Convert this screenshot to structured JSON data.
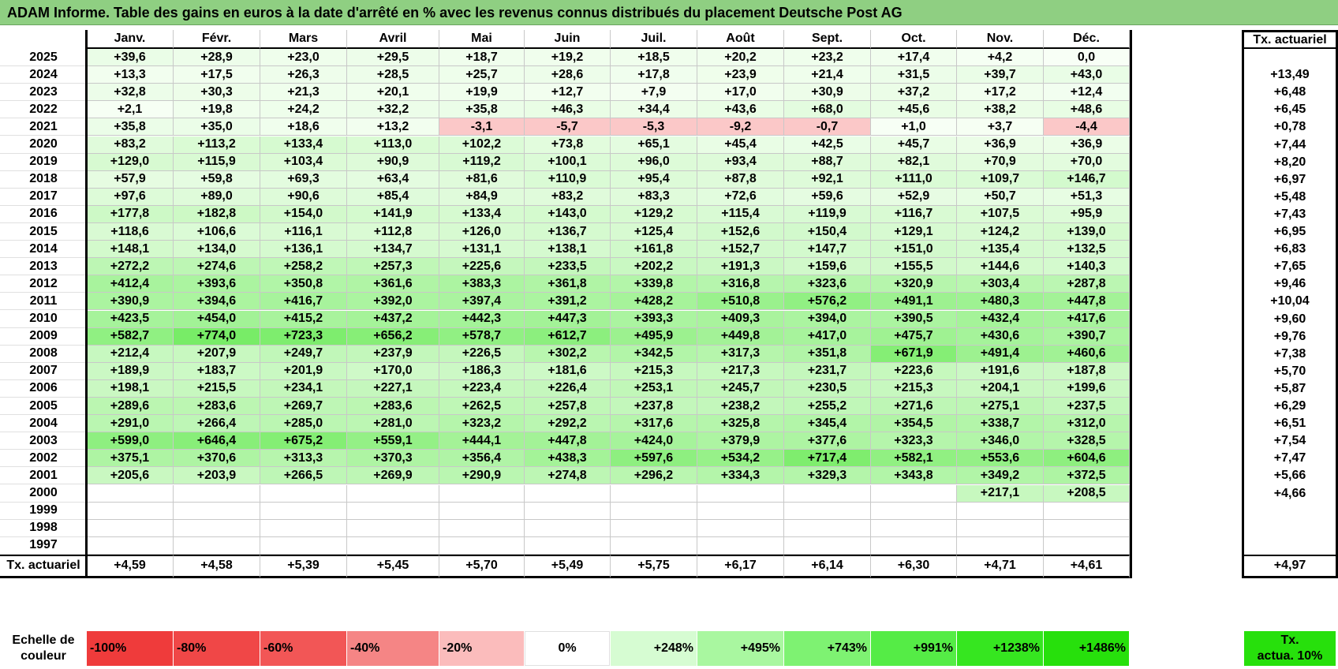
{
  "title": "ADAM Informe. Table des gains en euros à la date d'arrêté en % avec les revenus connus distribués du placement Deutsche Post AG",
  "chart_data": {
    "type": "table",
    "months": [
      "Janv.",
      "Févr.",
      "Mars",
      "Avril",
      "Mai",
      "Juin",
      "Juil.",
      "Août",
      "Sept.",
      "Oct.",
      "Nov.",
      "Déc."
    ],
    "rate_header": "Tx. actuariel",
    "rows": [
      {
        "year": "2025",
        "values": [
          "+39,6",
          "+28,9",
          "+23,0",
          "+29,5",
          "+18,7",
          "+19,2",
          "+18,5",
          "+20,2",
          "+23,2",
          "+17,4",
          "+4,2",
          "0,0"
        ],
        "rate": ""
      },
      {
        "year": "2024",
        "values": [
          "+13,3",
          "+17,5",
          "+26,3",
          "+28,5",
          "+25,7",
          "+28,6",
          "+17,8",
          "+23,9",
          "+21,4",
          "+31,5",
          "+39,7",
          "+43,0"
        ],
        "rate": "+13,49"
      },
      {
        "year": "2023",
        "values": [
          "+32,8",
          "+30,3",
          "+21,3",
          "+20,1",
          "+19,9",
          "+12,7",
          "+7,9",
          "+17,0",
          "+30,9",
          "+37,2",
          "+17,2",
          "+12,4"
        ],
        "rate": "+6,48"
      },
      {
        "year": "2022",
        "values": [
          "+2,1",
          "+19,8",
          "+24,2",
          "+32,2",
          "+35,8",
          "+46,3",
          "+34,4",
          "+43,6",
          "+68,0",
          "+45,6",
          "+38,2",
          "+48,6"
        ],
        "rate": "+6,45"
      },
      {
        "year": "2021",
        "values": [
          "+35,8",
          "+35,0",
          "+18,6",
          "+13,2",
          "-3,1",
          "-5,7",
          "-5,3",
          "-9,2",
          "-0,7",
          "+1,0",
          "+3,7",
          "-4,4"
        ],
        "rate": "+0,78"
      },
      {
        "year": "2020",
        "values": [
          "+83,2",
          "+113,2",
          "+133,4",
          "+113,0",
          "+102,2",
          "+73,8",
          "+65,1",
          "+45,4",
          "+42,5",
          "+45,7",
          "+36,9",
          "+36,9"
        ],
        "rate": "+7,44"
      },
      {
        "year": "2019",
        "values": [
          "+129,0",
          "+115,9",
          "+103,4",
          "+90,9",
          "+119,2",
          "+100,1",
          "+96,0",
          "+93,4",
          "+88,7",
          "+82,1",
          "+70,9",
          "+70,0"
        ],
        "rate": "+8,20"
      },
      {
        "year": "2018",
        "values": [
          "+57,9",
          "+59,8",
          "+69,3",
          "+63,4",
          "+81,6",
          "+110,9",
          "+95,4",
          "+87,8",
          "+92,1",
          "+111,0",
          "+109,7",
          "+146,7"
        ],
        "rate": "+6,97"
      },
      {
        "year": "2017",
        "values": [
          "+97,6",
          "+89,0",
          "+90,6",
          "+85,4",
          "+84,9",
          "+83,2",
          "+83,3",
          "+72,6",
          "+59,6",
          "+52,9",
          "+50,7",
          "+51,3"
        ],
        "rate": "+5,48"
      },
      {
        "year": "2016",
        "values": [
          "+177,8",
          "+182,8",
          "+154,0",
          "+141,9",
          "+133,4",
          "+143,0",
          "+129,2",
          "+115,4",
          "+119,9",
          "+116,7",
          "+107,5",
          "+95,9"
        ],
        "rate": "+7,43"
      },
      {
        "year": "2015",
        "values": [
          "+118,6",
          "+106,6",
          "+116,1",
          "+112,8",
          "+126,0",
          "+136,7",
          "+125,4",
          "+152,6",
          "+150,4",
          "+129,1",
          "+124,2",
          "+139,0"
        ],
        "rate": "+6,95"
      },
      {
        "year": "2014",
        "values": [
          "+148,1",
          "+134,0",
          "+136,1",
          "+134,7",
          "+131,1",
          "+138,1",
          "+161,8",
          "+152,7",
          "+147,7",
          "+151,0",
          "+135,4",
          "+132,5"
        ],
        "rate": "+6,83"
      },
      {
        "year": "2013",
        "values": [
          "+272,2",
          "+274,6",
          "+258,2",
          "+257,3",
          "+225,6",
          "+233,5",
          "+202,2",
          "+191,3",
          "+159,6",
          "+155,5",
          "+144,6",
          "+140,3"
        ],
        "rate": "+7,65"
      },
      {
        "year": "2012",
        "values": [
          "+412,4",
          "+393,6",
          "+350,8",
          "+361,6",
          "+383,3",
          "+361,8",
          "+339,8",
          "+316,8",
          "+323,6",
          "+320,9",
          "+303,4",
          "+287,8"
        ],
        "rate": "+9,46"
      },
      {
        "year": "2011",
        "values": [
          "+390,9",
          "+394,6",
          "+416,7",
          "+392,0",
          "+397,4",
          "+391,2",
          "+428,2",
          "+510,8",
          "+576,2",
          "+491,1",
          "+480,3",
          "+447,8"
        ],
        "rate": "+10,04"
      },
      {
        "year": "2010",
        "values": [
          "+423,5",
          "+454,0",
          "+415,2",
          "+437,2",
          "+442,3",
          "+447,3",
          "+393,3",
          "+409,3",
          "+394,0",
          "+390,5",
          "+432,4",
          "+417,6"
        ],
        "rate": "+9,60"
      },
      {
        "year": "2009",
        "values": [
          "+582,7",
          "+774,0",
          "+723,3",
          "+656,2",
          "+578,7",
          "+612,7",
          "+495,9",
          "+449,8",
          "+417,0",
          "+475,7",
          "+430,6",
          "+390,7"
        ],
        "rate": "+9,76"
      },
      {
        "year": "2008",
        "values": [
          "+212,4",
          "+207,9",
          "+249,7",
          "+237,9",
          "+226,5",
          "+302,2",
          "+342,5",
          "+317,3",
          "+351,8",
          "+671,9",
          "+491,4",
          "+460,6"
        ],
        "rate": "+7,38"
      },
      {
        "year": "2007",
        "values": [
          "+189,9",
          "+183,7",
          "+201,9",
          "+170,0",
          "+186,3",
          "+181,6",
          "+215,3",
          "+217,3",
          "+231,7",
          "+223,6",
          "+191,6",
          "+187,8"
        ],
        "rate": "+5,70"
      },
      {
        "year": "2006",
        "values": [
          "+198,1",
          "+215,5",
          "+234,1",
          "+227,1",
          "+223,4",
          "+226,4",
          "+253,1",
          "+245,7",
          "+230,5",
          "+215,3",
          "+204,1",
          "+199,6"
        ],
        "rate": "+5,87"
      },
      {
        "year": "2005",
        "values": [
          "+289,6",
          "+283,6",
          "+269,7",
          "+283,6",
          "+262,5",
          "+257,8",
          "+237,8",
          "+238,2",
          "+255,2",
          "+271,6",
          "+275,1",
          "+237,5"
        ],
        "rate": "+6,29"
      },
      {
        "year": "2004",
        "values": [
          "+291,0",
          "+266,4",
          "+285,0",
          "+281,0",
          "+323,2",
          "+292,2",
          "+317,6",
          "+325,8",
          "+345,4",
          "+354,5",
          "+338,7",
          "+312,0"
        ],
        "rate": "+6,51"
      },
      {
        "year": "2003",
        "values": [
          "+599,0",
          "+646,4",
          "+675,2",
          "+559,1",
          "+444,1",
          "+447,8",
          "+424,0",
          "+379,9",
          "+377,6",
          "+323,3",
          "+346,0",
          "+328,5"
        ],
        "rate": "+7,54"
      },
      {
        "year": "2002",
        "values": [
          "+375,1",
          "+370,6",
          "+313,3",
          "+370,3",
          "+356,4",
          "+438,3",
          "+597,6",
          "+534,2",
          "+717,4",
          "+582,1",
          "+553,6",
          "+604,6"
        ],
        "rate": "+7,47"
      },
      {
        "year": "2001",
        "values": [
          "+205,6",
          "+203,9",
          "+266,5",
          "+269,9",
          "+290,9",
          "+274,8",
          "+296,2",
          "+334,3",
          "+329,3",
          "+343,8",
          "+349,2",
          "+372,5"
        ],
        "rate": "+5,66"
      },
      {
        "year": "2000",
        "values": [
          "",
          "",
          "",
          "",
          "",
          "",
          "",
          "",
          "",
          "",
          "+217,1",
          "+208,5"
        ],
        "rate": "+4,66"
      },
      {
        "year": "1999",
        "values": [
          "",
          "",
          "",
          "",
          "",
          "",
          "",
          "",
          "",
          "",
          "",
          ""
        ],
        "rate": ""
      },
      {
        "year": "1998",
        "values": [
          "",
          "",
          "",
          "",
          "",
          "",
          "",
          "",
          "",
          "",
          "",
          ""
        ],
        "rate": ""
      },
      {
        "year": "1997",
        "values": [
          "",
          "",
          "",
          "",
          "",
          "",
          "",
          "",
          "",
          "",
          "",
          ""
        ],
        "rate": ""
      }
    ],
    "footer": {
      "label": "Tx. actuariel",
      "values": [
        "+4,59",
        "+4,58",
        "+5,39",
        "+5,45",
        "+5,70",
        "+5,49",
        "+5,75",
        "+6,17",
        "+6,14",
        "+6,30",
        "+4,71",
        "+4,61"
      ],
      "rate": "+4,97"
    },
    "scale": {
      "label_line1": "Echelle de",
      "label_line2": "couleur",
      "items": [
        {
          "label": "-100%",
          "color": "#ef3b3b"
        },
        {
          "label": "-80%",
          "color": "#f04747"
        },
        {
          "label": "-60%",
          "color": "#f25656"
        },
        {
          "label": "-40%",
          "color": "#f58585"
        },
        {
          "label": "-20%",
          "color": "#fbbcbc"
        },
        {
          "label": "0%",
          "color": "#ffffff"
        },
        {
          "label": "+248%",
          "color": "#d6fcd2"
        },
        {
          "label": "+495%",
          "color": "#a9f7a0"
        },
        {
          "label": "+743%",
          "color": "#7ef272"
        },
        {
          "label": "+991%",
          "color": "#55ec46"
        },
        {
          "label": "+1238%",
          "color": "#36e620"
        },
        {
          "label": "+1486%",
          "color": "#27e00c"
        }
      ],
      "rate_line1": "Tx.",
      "rate_line2": "actua. 10%",
      "rate_color": "#27e00c"
    }
  }
}
